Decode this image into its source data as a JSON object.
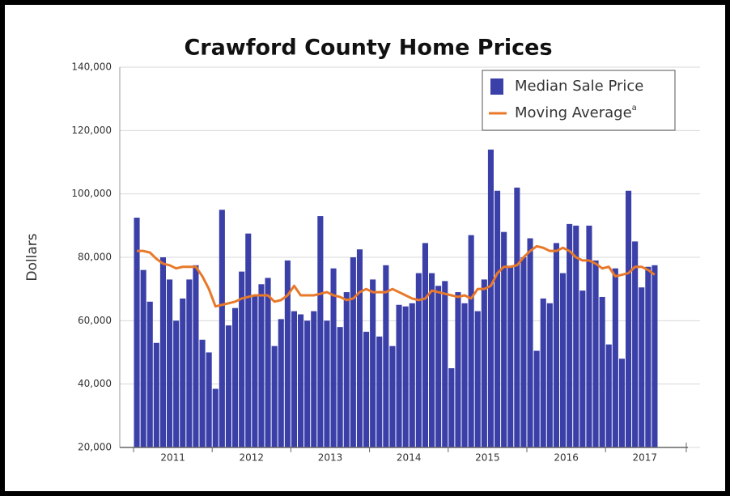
{
  "chart_data": {
    "type": "bar",
    "title": "Crawford County Home Prices",
    "y_label": "Dollars",
    "categories": [
      null,
      null,
      null,
      null,
      null,
      null,
      "2011",
      null,
      null,
      null,
      null,
      null,
      null,
      null,
      null,
      null,
      null,
      null,
      "2012",
      null,
      null,
      null,
      null,
      null,
      null,
      null,
      null,
      null,
      null,
      null,
      "2013",
      null,
      null,
      null,
      null,
      null,
      null,
      null,
      null,
      null,
      null,
      null,
      "2014",
      null,
      null,
      null,
      null,
      null,
      null,
      null,
      null,
      null,
      null,
      null,
      "2015",
      null,
      null,
      null,
      null,
      null,
      null,
      null,
      null,
      null,
      null,
      null,
      "2016",
      null,
      null,
      null,
      null,
      null,
      null,
      null,
      null,
      null,
      null,
      null,
      "2017",
      null
    ],
    "series": [
      {
        "name": "Median Sale Price",
        "color": "#3b3fa8",
        "values": [
          92500,
          76000,
          66000,
          53000,
          80000,
          73000,
          60000,
          67000,
          73000,
          77500,
          54000,
          50000,
          38500,
          95000,
          58500,
          64000,
          75500,
          87500,
          68000,
          71500,
          73500,
          52000,
          60500,
          79000,
          63000,
          62000,
          60000,
          63000,
          93000,
          60000,
          76500,
          58000,
          69000,
          80000,
          82500,
          56500,
          73000,
          55000,
          77500,
          52000,
          65000,
          64500,
          65500,
          75000,
          84500,
          75000,
          71000,
          72500,
          45000,
          69000,
          65500,
          87000,
          63000,
          73000,
          114000,
          101000,
          88000,
          77000,
          102000,
          80000,
          86000,
          50500,
          67000,
          65500,
          84500,
          75000,
          90500,
          90000,
          69500,
          90000,
          79000,
          67500,
          52500,
          76500,
          48000,
          101000,
          85000,
          70500,
          77000,
          77500
        ]
      },
      {
        "name": "Moving Average",
        "note_marker": "a",
        "type": "line",
        "color": "#e8792a",
        "values": [
          82000,
          82000,
          81500,
          79500,
          78000,
          77500,
          76500,
          77000,
          77000,
          77000,
          74000,
          70000,
          64500,
          65000,
          65500,
          66000,
          67000,
          67500,
          68000,
          68000,
          68000,
          66000,
          66500,
          68000,
          71000,
          68000,
          68000,
          68000,
          68500,
          69000,
          68000,
          67500,
          66500,
          67000,
          69000,
          70000,
          69000,
          69000,
          69000,
          70000,
          69000,
          68000,
          67000,
          66500,
          67000,
          69500,
          69000,
          68500,
          68000,
          67500,
          68000,
          67000,
          70000,
          70000,
          71000,
          75000,
          77000,
          77000,
          77500,
          80000,
          82000,
          83500,
          83000,
          82000,
          82000,
          83000,
          82000,
          80000,
          79000,
          79000,
          78000,
          76500,
          77000,
          74000,
          74500,
          75000,
          77000,
          77000,
          76000,
          74500
        ]
      }
    ],
    "ylim": [
      20000,
      140000
    ],
    "yticks": [
      {
        "value": 20000,
        "label": "20,000"
      },
      {
        "value": 40000,
        "label": "40,000"
      },
      {
        "value": 60000,
        "label": "60,000"
      },
      {
        "value": 80000,
        "label": "80,000"
      },
      {
        "value": 100000,
        "label": "100,000"
      },
      {
        "value": 120000,
        "label": "120,000"
      },
      {
        "value": 140000,
        "label": "140,000"
      }
    ],
    "grid": true,
    "legend": "upper right"
  }
}
